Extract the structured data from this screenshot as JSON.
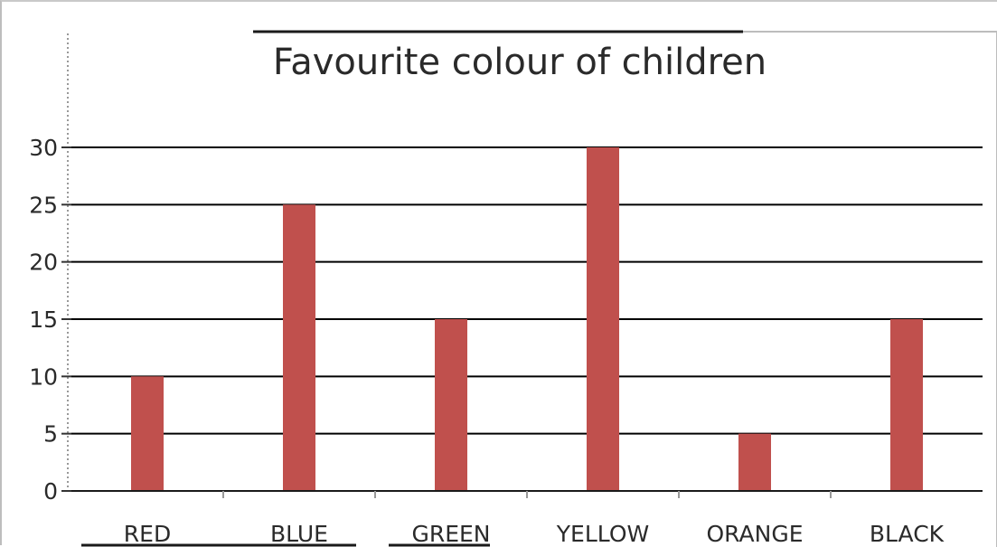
{
  "chart_data": {
    "type": "bar",
    "title": "Favourite colour of children",
    "xlabel": "",
    "ylabel": "",
    "categories": [
      "RED",
      "BLUE",
      "GREEN",
      "YELLOW",
      "ORANGE",
      "BLACK"
    ],
    "values": [
      10,
      25,
      15,
      30,
      5,
      15
    ],
    "ylim": [
      0,
      30
    ],
    "yticks": [
      0,
      5,
      10,
      15,
      20,
      25,
      30
    ],
    "grid": true,
    "legend": "none",
    "bar_color": "#c0504d",
    "gridline_color": "#000000"
  }
}
